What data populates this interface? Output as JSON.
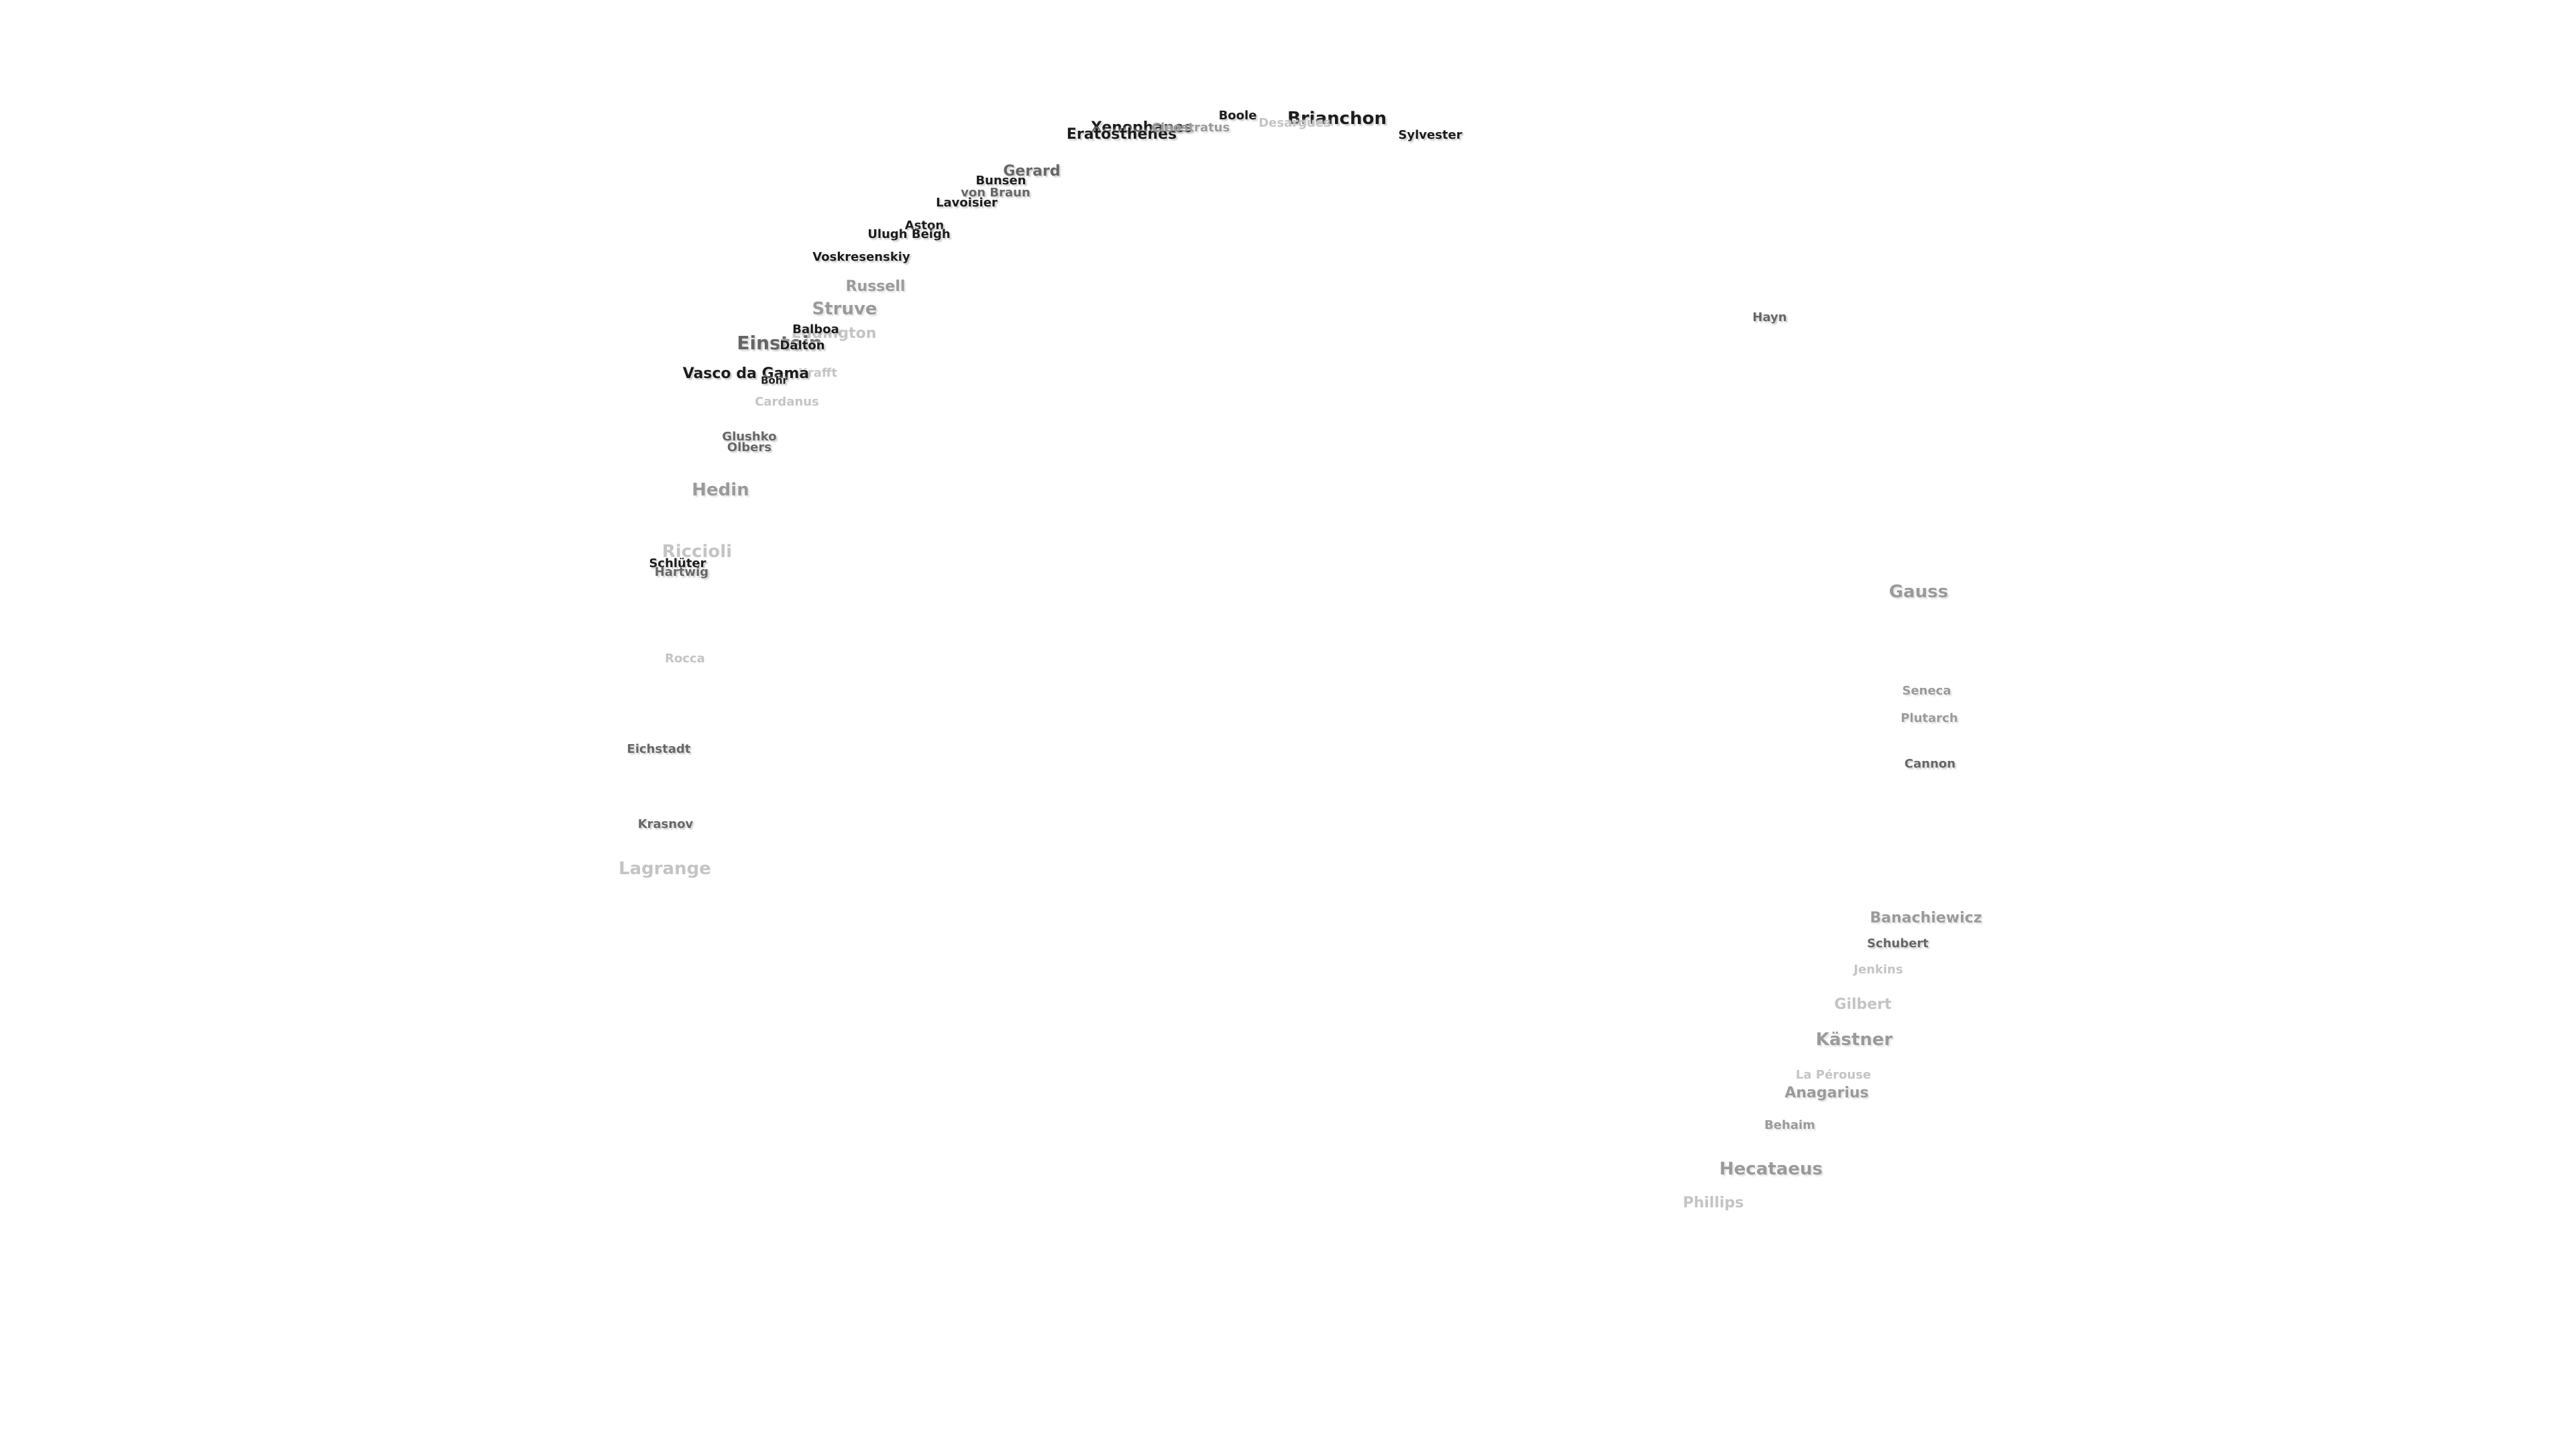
{
  "labels": {
    "brianchon": "Brianchon",
    "boole": "Boole",
    "desargues": "Desargues",
    "sylvester": "Sylvester",
    "xenophanes": "Xenophanes",
    "eratosthenes": "Eratosthenes",
    "cleostratus": "Cleostratus",
    "gerard": "Gerard",
    "bunsen": "Bunsen",
    "von_braun": "von Braun",
    "lavoisier": "Lavoisier",
    "aston": "Aston",
    "ulugh_beigh": "Ulugh Beigh",
    "voskresenskiy": "Voskresenskiy",
    "russell": "Russell",
    "struve": "Struve",
    "eddington": "Eddington",
    "balboa": "Balboa",
    "einstein": "Einstein",
    "dalton": "Dalton",
    "krafft": "Krafft",
    "vasco_da_gama": "Vasco da Gama",
    "bohr": "Bohr",
    "cardanus": "Cardanus",
    "glushko": "Glushko",
    "olbers": "Olbers",
    "hedin": "Hedin",
    "riccioli": "Riccioli",
    "schluter": "Schlüter",
    "hartwig": "Hartwig",
    "rocca": "Rocca",
    "eichstadt": "Eichstadt",
    "krasnov": "Krasnov",
    "lagrange": "Lagrange",
    "hayn": "Hayn",
    "gauss": "Gauss",
    "seneca": "Seneca",
    "plutarch": "Plutarch",
    "cannon": "Cannon",
    "banachiewicz": "Banachiewicz",
    "schubert": "Schubert",
    "jenkins": "Jenkins",
    "gilbert": "Gilbert",
    "kastner": "Kästner",
    "la_perouse": "La Pérouse",
    "anagarius": "Anagarius",
    "behaim": "Behaim",
    "hecataeus": "Hecataeus",
    "phillips": "Phillips"
  }
}
